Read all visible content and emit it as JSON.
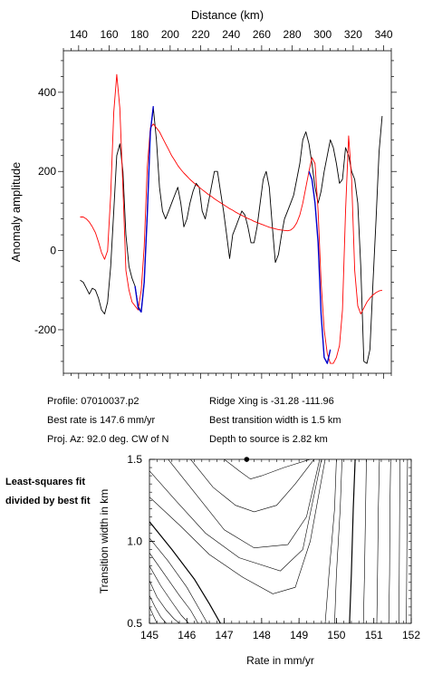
{
  "chart_data": [
    {
      "type": "line",
      "xlabel": "Distance (km)",
      "ylabel": "Anomaly amplitude",
      "xlim": [
        130,
        345
      ],
      "ylim": [
        -310,
        505
      ],
      "x_ticks": [
        140,
        160,
        180,
        200,
        220,
        240,
        260,
        280,
        300,
        320,
        340
      ],
      "y_ticks": [
        -200,
        0,
        200,
        400
      ],
      "axis_position": "x labels top",
      "series": [
        {
          "color": "#000000",
          "x": [
            141,
            143,
            145,
            147,
            149,
            151,
            153,
            155,
            157,
            159,
            161,
            163,
            165,
            167,
            169,
            171,
            173,
            175,
            177,
            179,
            181,
            183,
            185,
            187,
            189,
            191,
            193,
            195,
            197,
            199,
            201,
            203,
            205,
            207,
            209,
            211,
            213,
            215,
            217,
            219,
            221,
            223,
            225,
            227,
            229,
            231,
            233,
            235,
            237,
            239,
            241,
            243,
            245,
            247,
            249,
            251,
            253,
            255,
            257,
            259,
            261,
            263,
            265,
            267,
            269,
            271,
            273,
            275,
            277,
            279,
            281,
            283,
            285,
            287,
            289,
            291,
            293,
            295,
            297,
            299,
            301,
            303,
            305,
            307,
            309,
            311,
            313,
            315,
            317,
            319,
            321,
            323,
            325,
            327,
            329,
            331,
            333,
            335,
            337,
            339
          ],
          "y": [
            -75,
            -80,
            -95,
            -110,
            -95,
            -100,
            -120,
            -150,
            -160,
            -130,
            -40,
            100,
            240,
            270,
            200,
            40,
            -40,
            -70,
            -90,
            -140,
            -155,
            -80,
            100,
            300,
            360,
            280,
            160,
            100,
            80,
            100,
            120,
            140,
            160,
            120,
            60,
            80,
            120,
            150,
            170,
            160,
            100,
            80,
            120,
            160,
            200,
            200,
            150,
            100,
            40,
            -20,
            40,
            60,
            80,
            100,
            90,
            60,
            20,
            20,
            60,
            120,
            180,
            200,
            160,
            60,
            -30,
            -10,
            40,
            80,
            100,
            120,
            140,
            180,
            220,
            280,
            300,
            270,
            220,
            160,
            120,
            150,
            200,
            240,
            280,
            260,
            220,
            170,
            180,
            260,
            240,
            200,
            180,
            120,
            -40,
            -280,
            -285,
            -250,
            -80,
            80,
            250,
            340
          ]
        },
        {
          "color": "#ff0000",
          "x": [
            141,
            143,
            145,
            147,
            149,
            151,
            153,
            155,
            157,
            159,
            161,
            163,
            165,
            167,
            169,
            171,
            173,
            175,
            177,
            179,
            181,
            183,
            185,
            187,
            189,
            191,
            193,
            195,
            197,
            199,
            201,
            203,
            205,
            207,
            209,
            211,
            213,
            215,
            217,
            219,
            221,
            223,
            225,
            227,
            229,
            231,
            233,
            235,
            237,
            239,
            241,
            243,
            245,
            247,
            249,
            251,
            253,
            255,
            257,
            259,
            261,
            263,
            265,
            267,
            269,
            271,
            273,
            275,
            277,
            279,
            281,
            283,
            285,
            287,
            289,
            291,
            293,
            295,
            297,
            299,
            301,
            303,
            305,
            307,
            309,
            311,
            313,
            315,
            317,
            319,
            321,
            323,
            325,
            327,
            329,
            331,
            333,
            335,
            337,
            339
          ],
          "y": [
            85,
            85,
            80,
            72,
            60,
            45,
            22,
            -5,
            -22,
            0,
            140,
            350,
            445,
            360,
            160,
            -50,
            -100,
            -130,
            -140,
            -150,
            -100,
            10,
            210,
            310,
            320,
            310,
            300,
            285,
            270,
            255,
            240,
            228,
            215,
            205,
            196,
            188,
            180,
            173,
            166,
            160,
            154,
            148,
            142,
            137,
            131,
            126,
            121,
            116,
            111,
            106,
            102,
            97,
            93,
            89,
            85,
            81,
            78,
            74,
            71,
            68,
            65,
            62,
            59,
            57,
            55,
            53,
            52,
            51,
            50,
            52,
            58,
            70,
            90,
            120,
            160,
            200,
            235,
            220,
            100,
            -80,
            -200,
            -260,
            -285,
            -285,
            -270,
            -240,
            -150,
            100,
            290,
            180,
            -50,
            -140,
            -160,
            -145,
            -130,
            -120,
            -112,
            -106,
            -102,
            -100
          ]
        },
        {
          "color": "#0000cc",
          "x": [
            177,
            179,
            181,
            183,
            185,
            187,
            189
          ],
          "y": [
            -90,
            -145,
            -155,
            -80,
            90,
            300,
            365
          ]
        },
        {
          "color": "#0000cc",
          "x": [
            291,
            293,
            295,
            297,
            299,
            301,
            303,
            305
          ],
          "y": [
            200,
            180,
            120,
            20,
            -160,
            -270,
            -285,
            -250
          ]
        }
      ]
    },
    {
      "type": "contour",
      "xlabel": "Rate in mm/yr",
      "ylabel": "Transition width in km",
      "xlim": [
        145,
        152
      ],
      "ylim": [
        0.5,
        1.5
      ],
      "x_ticks": [
        145,
        146,
        147,
        148,
        149,
        150,
        151,
        152
      ],
      "y_ticks": [
        0.5,
        1.0,
        1.5
      ],
      "best_fit_marker": {
        "x": 147.6,
        "y": 1.5
      },
      "contours": [
        {
          "x": [
            147.0,
            147.4,
            147.7,
            148.0,
            148.6,
            149.3
          ],
          "y": [
            1.5,
            1.43,
            1.38,
            1.4,
            1.45,
            1.5
          ]
        },
        {
          "x": [
            146.1,
            146.7,
            147.3,
            147.8,
            148.4,
            148.9,
            149.4
          ],
          "y": [
            1.5,
            1.33,
            1.22,
            1.18,
            1.22,
            1.35,
            1.5
          ]
        },
        {
          "x": [
            145.5,
            146.2,
            147.0,
            147.8,
            148.7,
            149.2,
            149.55
          ],
          "y": [
            1.5,
            1.3,
            1.07,
            0.96,
            0.98,
            1.15,
            1.5
          ]
        },
        {
          "x": [
            145.0,
            145.7,
            146.5,
            147.4,
            148.5,
            149.1,
            149.6
          ],
          "y": [
            1.43,
            1.25,
            1.05,
            0.9,
            0.82,
            0.95,
            1.5
          ]
        },
        {
          "x": [
            145.0,
            145.8,
            146.6,
            147.5,
            148.3,
            148.9,
            149.3,
            149.7
          ],
          "y": [
            1.27,
            1.1,
            0.92,
            0.78,
            0.68,
            0.72,
            1.0,
            1.5
          ]
        },
        {
          "x": [
            145.0,
            145.6,
            146.2,
            146.6,
            146.9
          ],
          "y": [
            1.12,
            0.95,
            0.77,
            0.62,
            0.5
          ]
        },
        {
          "x": [
            145.0,
            145.5,
            146.0,
            146.3,
            146.55
          ],
          "y": [
            1.02,
            0.88,
            0.72,
            0.6,
            0.5
          ]
        },
        {
          "x": [
            145.0,
            145.4,
            145.8,
            146.1,
            146.3
          ],
          "y": [
            0.93,
            0.8,
            0.67,
            0.58,
            0.5
          ]
        },
        {
          "x": [
            145.0,
            145.3,
            145.6,
            145.85,
            146.05
          ],
          "y": [
            0.85,
            0.73,
            0.63,
            0.55,
            0.5
          ]
        },
        {
          "x": [
            145.0,
            145.2,
            145.45,
            145.65,
            145.8
          ],
          "y": [
            0.76,
            0.66,
            0.58,
            0.53,
            0.5
          ]
        },
        {
          "x": [
            145.0,
            145.15,
            145.3,
            145.45
          ],
          "y": [
            0.67,
            0.6,
            0.54,
            0.5
          ]
        },
        {
          "x": [
            145.0,
            145.1,
            145.2
          ],
          "y": [
            0.6,
            0.55,
            0.5
          ]
        },
        {
          "x": [
            150.0,
            149.95,
            149.8,
            149.7
          ],
          "y": [
            1.5,
            1.2,
            0.8,
            0.5
          ]
        },
        {
          "x": [
            150.15,
            150.1,
            150.0,
            149.95
          ],
          "y": [
            1.5,
            1.2,
            0.8,
            0.5
          ]
        },
        {
          "x": [
            150.5,
            150.45,
            150.4,
            150.35
          ],
          "y": [
            1.5,
            1.2,
            0.8,
            0.5
          ]
        },
        {
          "x": [
            150.8,
            150.78,
            150.75,
            150.72
          ],
          "y": [
            1.5,
            1.2,
            0.8,
            0.5
          ]
        },
        {
          "x": [
            151.15,
            151.12,
            151.1,
            151.08
          ],
          "y": [
            1.5,
            1.2,
            0.8,
            0.5
          ]
        },
        {
          "x": [
            151.45,
            151.43,
            151.42,
            151.4
          ],
          "y": [
            1.5,
            1.2,
            0.8,
            0.5
          ]
        },
        {
          "x": [
            151.7,
            151.69,
            151.68,
            151.67
          ],
          "y": [
            1.5,
            1.2,
            0.8,
            0.5
          ]
        },
        {
          "x": [
            151.9,
            151.89,
            151.88,
            151.87
          ],
          "y": [
            1.5,
            1.2,
            0.8,
            0.5
          ]
        }
      ]
    }
  ],
  "info": {
    "profile": "Profile: 07010037.p2",
    "ridge": "Ridge Xing is -31.28 -111.96",
    "best_rate": "Best rate is 147.6 mm/yr",
    "best_width": "Best transition width is 1.5 km",
    "proj": "Proj. Az: 92.0 deg. CW of N",
    "depth": "Depth to source is   2.82 km"
  },
  "side_note": "Least-squares fit divided by best fit"
}
